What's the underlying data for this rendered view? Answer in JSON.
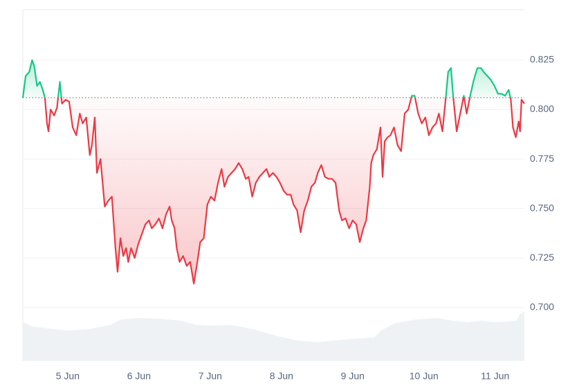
{
  "chart_data": {
    "type": "line",
    "xlim": [
      4.37,
      11.41
    ],
    "ylim": [
      0.673,
      0.8505
    ],
    "xticks": [
      {
        "value": 5,
        "label": "5 Jun"
      },
      {
        "value": 6,
        "label": "6 Jun"
      },
      {
        "value": 7,
        "label": "7 Jun"
      },
      {
        "value": 8,
        "label": "8 Jun"
      },
      {
        "value": 9,
        "label": "9 Jun"
      },
      {
        "value": 10,
        "label": "10 Jun"
      },
      {
        "value": 11,
        "label": "11 Jun"
      }
    ],
    "yticks": [
      {
        "value": 0.7,
        "label": "0.700"
      },
      {
        "value": 0.725,
        "label": "0.725"
      },
      {
        "value": 0.75,
        "label": "0.750"
      },
      {
        "value": 0.775,
        "label": "0.775"
      },
      {
        "value": 0.8,
        "label": "0.800"
      },
      {
        "value": 0.825,
        "label": "0.825"
      }
    ],
    "grid": true,
    "baseline": 0.806,
    "x": [
      4.37,
      4.41,
      4.46,
      4.5,
      4.53,
      4.57,
      4.61,
      4.65,
      4.68,
      4.71,
      4.73,
      4.76,
      4.81,
      4.85,
      4.89,
      4.92,
      4.97,
      5.02,
      5.07,
      5.12,
      5.17,
      5.21,
      5.26,
      5.31,
      5.34,
      5.38,
      5.41,
      5.46,
      5.49,
      5.52,
      5.57,
      5.62,
      5.67,
      5.7,
      5.74,
      5.78,
      5.82,
      5.85,
      5.89,
      5.94,
      5.99,
      6.04,
      6.09,
      6.14,
      6.18,
      6.23,
      6.28,
      6.33,
      6.38,
      6.43,
      6.46,
      6.5,
      6.53,
      6.57,
      6.62,
      6.67,
      6.72,
      6.77,
      6.82,
      6.86,
      6.91,
      6.96,
      7.01,
      7.06,
      7.11,
      7.16,
      7.2,
      7.25,
      7.3,
      7.35,
      7.4,
      7.45,
      7.5,
      7.54,
      7.59,
      7.64,
      7.69,
      7.74,
      7.79,
      7.83,
      7.88,
      7.93,
      7.98,
      8.03,
      8.08,
      8.13,
      8.17,
      8.22,
      8.27,
      8.32,
      8.37,
      8.42,
      8.47,
      8.51,
      8.56,
      8.61,
      8.66,
      8.71,
      8.76,
      8.81,
      8.85,
      8.9,
      8.95,
      9.0,
      9.05,
      9.1,
      9.15,
      9.19,
      9.24,
      9.26,
      9.29,
      9.34,
      9.39,
      9.42,
      9.45,
      9.49,
      9.53,
      9.58,
      9.63,
      9.68,
      9.73,
      9.78,
      9.83,
      9.87,
      9.92,
      9.97,
      10.02,
      10.07,
      10.12,
      10.17,
      10.21,
      10.26,
      10.31,
      10.34,
      10.38,
      10.41,
      10.46,
      10.51,
      10.56,
      10.6,
      10.65,
      10.7,
      10.75,
      10.8,
      10.84,
      10.89,
      10.94,
      10.99,
      11.04,
      11.09,
      11.14,
      11.19,
      11.22,
      11.25,
      11.29,
      11.33,
      11.35,
      11.37,
      11.41
    ],
    "series": [
      {
        "color_up": "#16c784",
        "color_down": "#ea3943",
        "values": [
          0.806,
          0.817,
          0.819,
          0.825,
          0.822,
          0.812,
          0.814,
          0.81,
          0.806,
          0.793,
          0.789,
          0.8,
          0.797,
          0.801,
          0.814,
          0.803,
          0.805,
          0.804,
          0.791,
          0.787,
          0.798,
          0.793,
          0.796,
          0.777,
          0.782,
          0.796,
          0.768,
          0.775,
          0.763,
          0.751,
          0.754,
          0.756,
          0.73,
          0.718,
          0.735,
          0.726,
          0.73,
          0.723,
          0.73,
          0.725,
          0.732,
          0.737,
          0.742,
          0.744,
          0.74,
          0.742,
          0.745,
          0.74,
          0.747,
          0.751,
          0.744,
          0.74,
          0.73,
          0.723,
          0.726,
          0.721,
          0.723,
          0.712,
          0.723,
          0.733,
          0.735,
          0.752,
          0.756,
          0.754,
          0.763,
          0.77,
          0.761,
          0.766,
          0.768,
          0.77,
          0.773,
          0.77,
          0.765,
          0.766,
          0.756,
          0.763,
          0.766,
          0.768,
          0.77,
          0.766,
          0.768,
          0.766,
          0.763,
          0.759,
          0.757,
          0.757,
          0.752,
          0.749,
          0.738,
          0.749,
          0.754,
          0.761,
          0.763,
          0.768,
          0.772,
          0.766,
          0.765,
          0.765,
          0.763,
          0.749,
          0.744,
          0.745,
          0.74,
          0.744,
          0.742,
          0.733,
          0.74,
          0.744,
          0.761,
          0.773,
          0.777,
          0.78,
          0.791,
          0.766,
          0.784,
          0.786,
          0.787,
          0.791,
          0.782,
          0.779,
          0.798,
          0.8,
          0.807,
          0.807,
          0.798,
          0.793,
          0.796,
          0.787,
          0.791,
          0.793,
          0.798,
          0.789,
          0.807,
          0.819,
          0.821,
          0.807,
          0.789,
          0.798,
          0.807,
          0.798,
          0.807,
          0.815,
          0.821,
          0.821,
          0.819,
          0.817,
          0.815,
          0.812,
          0.808,
          0.808,
          0.807,
          0.81,
          0.805,
          0.791,
          0.786,
          0.794,
          0.789,
          0.805,
          0.803
        ]
      }
    ],
    "volume": {
      "color": "#eff2f5",
      "ylim": [
        0,
        100
      ],
      "x": [
        4.37,
        4.5,
        4.8,
        5.0,
        5.3,
        5.6,
        5.75,
        6.0,
        6.3,
        6.6,
        6.8,
        7.0,
        7.3,
        7.6,
        7.9,
        8.2,
        8.5,
        8.8,
        9.0,
        9.3,
        9.4,
        9.6,
        9.9,
        10.2,
        10.4,
        10.6,
        10.8,
        11.0,
        11.3,
        11.35,
        11.41
      ],
      "values": [
        57,
        50,
        46,
        44,
        46,
        52,
        60,
        62,
        61,
        58,
        52,
        51,
        52,
        46,
        37,
        30,
        27,
        30,
        32,
        34,
        44,
        55,
        60,
        62,
        58,
        56,
        58,
        56,
        58,
        68,
        72
      ]
    }
  }
}
